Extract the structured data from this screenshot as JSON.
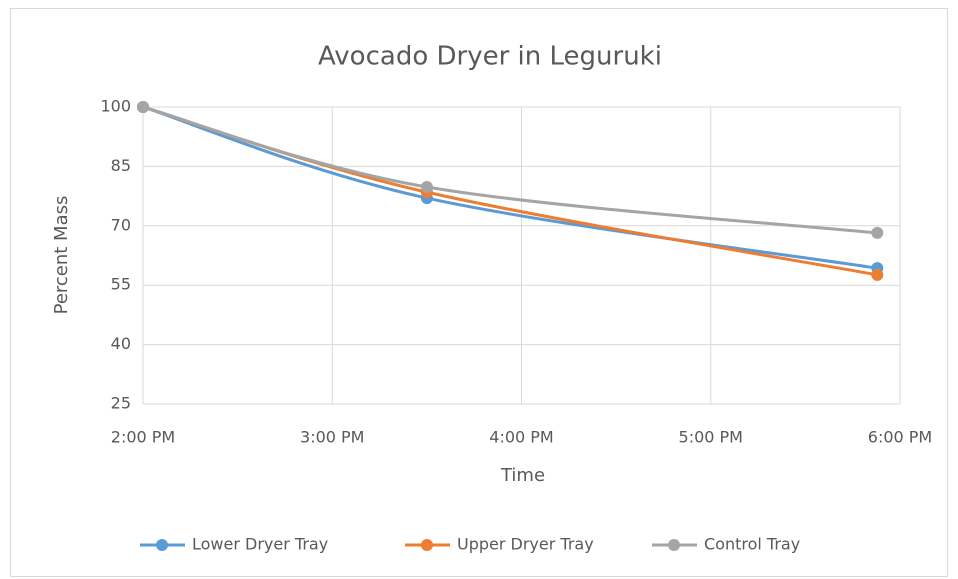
{
  "chart_data": {
    "type": "line",
    "title": "Avocado Dryer in Leguruki",
    "x_label": "Time",
    "y_label": "Percent Mass",
    "x": [
      14,
      15.5,
      17.88
    ],
    "series": [
      {
        "name": "Lower Dryer Tray",
        "color": "#5b9bd5",
        "values": [
          100,
          77,
          59.3
        ]
      },
      {
        "name": "Upper Dryer Tray",
        "color": "#ed7d31",
        "values": [
          100,
          78.5,
          57.6
        ]
      },
      {
        "name": "Control Tray",
        "color": "#a5a5a5",
        "values": [
          100,
          79.8,
          68.2
        ]
      }
    ],
    "xlim": [
      14,
      18
    ],
    "xticks": [
      {
        "value": 14,
        "label": "2:00 PM"
      },
      {
        "value": 15,
        "label": "3:00 PM"
      },
      {
        "value": 16,
        "label": "4:00 PM"
      },
      {
        "value": 17,
        "label": "5:00 PM"
      },
      {
        "value": 18,
        "label": "6:00 PM"
      }
    ],
    "ylim": [
      25,
      100
    ],
    "yticks": [
      25,
      40,
      55,
      70,
      85,
      100
    ],
    "grid": true,
    "smooth": true,
    "legend": "bottom"
  }
}
